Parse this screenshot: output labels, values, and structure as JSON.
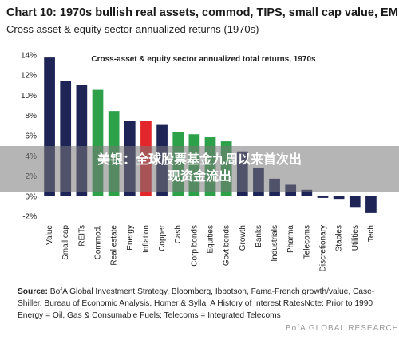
{
  "chart_data": {
    "type": "bar",
    "title": "Chart 10: 1970s bullish real assets, commod, TIPS, small cap value, EM",
    "subtitle": "Cross asset & equity sector annualized returns (1970s)",
    "annotation": "Cross-asset & equity sector annualized total returns, 1970s",
    "categories": [
      "Value",
      "Small cap",
      "REITs",
      "Commod.",
      "Real estate",
      "Energy",
      "Inflation",
      "Copper",
      "Cash",
      "Corp bonds",
      "Equities",
      "Govt bonds",
      "Growth",
      "Banks",
      "Industrials",
      "Pharma",
      "Telecoms",
      "Discretionary",
      "Staples",
      "Utilities",
      "Tech"
    ],
    "values": [
      13.7,
      11.4,
      11.0,
      10.5,
      8.4,
      7.4,
      7.4,
      7.1,
      6.3,
      6.1,
      5.8,
      5.4,
      4.4,
      2.8,
      1.7,
      1.1,
      0.6,
      -0.2,
      -0.3,
      -1.1,
      -1.7
    ],
    "colors": [
      "#1e2556",
      "#1e2556",
      "#1e2556",
      "#2ca14a",
      "#2ca14a",
      "#1e2556",
      "#e3262b",
      "#1e2556",
      "#2ca14a",
      "#2ca14a",
      "#2ca14a",
      "#2ca14a",
      "#1e2556",
      "#1e2556",
      "#1e2556",
      "#1e2556",
      "#1e2556",
      "#1e2556",
      "#1e2556",
      "#1e2556",
      "#1e2556"
    ],
    "ylim": [
      -2.5,
      14.5
    ],
    "yticks": [
      {
        "value": 14,
        "label": "14%"
      },
      {
        "value": 12,
        "label": "12%"
      },
      {
        "value": 10,
        "label": "10%"
      },
      {
        "value": 8,
        "label": "8%"
      },
      {
        "value": 6,
        "label": "6%"
      },
      {
        "value": 4,
        "label": "4%"
      },
      {
        "value": 2,
        "label": "2%"
      },
      {
        "value": 0,
        "label": "0%"
      },
      {
        "value": -2,
        "label": "-2%"
      }
    ],
    "grid": false,
    "source": {
      "label": "Source:",
      "text": "BofA Global Investment Strategy, Bloomberg, Ibbotson, Fama-French growth/value, Case-Shiller, Bureau of Economic Analysis, Homer & Sylla, A History of Interest RatesNote: Prior to 1990 Energy = Oil, Gas & Consumable Fuels; Telecoms = Integrated Telecoms"
    }
  },
  "overlay": {
    "lines": [
      "美银：全球股票基金九周以来首次出",
      "现资金流出"
    ],
    "watermark": "BofA GLOBAL RESEARCH"
  }
}
